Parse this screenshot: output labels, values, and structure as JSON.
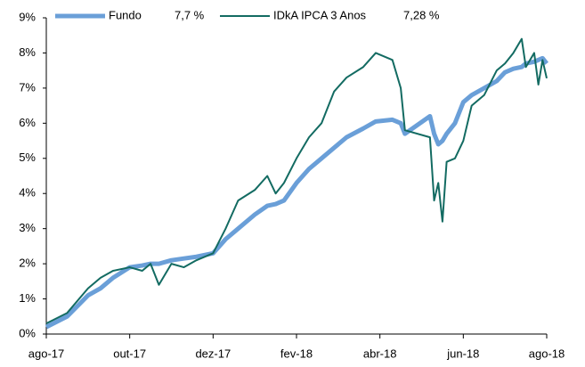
{
  "chart_data": {
    "type": "line",
    "x": [
      0,
      0.5,
      1,
      1.3,
      1.6,
      2,
      2.3,
      2.5,
      2.7,
      3,
      3.3,
      3.6,
      4,
      4.3,
      4.6,
      5,
      5.3,
      5.5,
      5.7,
      6,
      6.3,
      6.6,
      6.9,
      7.2,
      7.6,
      7.9,
      8.3,
      8.5,
      8.6,
      9.2,
      9.3,
      9.4,
      9.5,
      9.6,
      9.8,
      10,
      10.2,
      10.5,
      10.8,
      11,
      11.2,
      11.4,
      11.5,
      11.7,
      11.8,
      11.9,
      12
    ],
    "series": [
      {
        "name": "Fundo",
        "legend_value": "7,7 %",
        "color": "#6a9fd8",
        "width": 5,
        "values": [
          0.2,
          0.5,
          1.1,
          1.3,
          1.6,
          1.9,
          1.95,
          2.0,
          2.0,
          2.1,
          2.15,
          2.2,
          2.3,
          2.7,
          3.0,
          3.4,
          3.65,
          3.7,
          3.8,
          4.3,
          4.7,
          5.0,
          5.3,
          5.6,
          5.85,
          6.05,
          6.1,
          6.0,
          5.7,
          6.2,
          5.7,
          5.4,
          5.5,
          5.7,
          6.0,
          6.6,
          6.8,
          7.0,
          7.2,
          7.45,
          7.55,
          7.6,
          7.7,
          7.75,
          7.8,
          7.85,
          7.7
        ]
      },
      {
        "name": "IDkA IPCA 3 Anos",
        "legend_value": "7,28 %",
        "color": "#136b62",
        "width": 2,
        "values": [
          0.3,
          0.6,
          1.3,
          1.6,
          1.8,
          1.9,
          1.8,
          2.0,
          1.4,
          2.0,
          1.9,
          2.1,
          2.3,
          3.0,
          3.8,
          4.1,
          4.5,
          4.0,
          4.3,
          5.0,
          5.6,
          6.0,
          6.9,
          7.3,
          7.6,
          8.0,
          7.8,
          7.0,
          5.8,
          5.6,
          3.8,
          4.3,
          3.2,
          4.9,
          5.0,
          5.5,
          6.5,
          6.8,
          7.5,
          7.7,
          8.0,
          8.4,
          7.6,
          8.0,
          7.1,
          7.8,
          7.28
        ]
      }
    ],
    "xlim": [
      0,
      12
    ],
    "xticks": [
      {
        "value": 0,
        "label": "ago-17"
      },
      {
        "value": 2,
        "label": "out-17"
      },
      {
        "value": 4,
        "label": "dez-17"
      },
      {
        "value": 6,
        "label": "fev-18"
      },
      {
        "value": 8,
        "label": "abr-18"
      },
      {
        "value": 10,
        "label": "jun-18"
      },
      {
        "value": 12,
        "label": "ago-18"
      }
    ],
    "ylim": [
      0,
      9
    ],
    "yticks": [
      {
        "value": 0,
        "label": "0%"
      },
      {
        "value": 1,
        "label": "1%"
      },
      {
        "value": 2,
        "label": "2%"
      },
      {
        "value": 3,
        "label": "3%"
      },
      {
        "value": 4,
        "label": "4%"
      },
      {
        "value": 5,
        "label": "5%"
      },
      {
        "value": 6,
        "label": "6%"
      },
      {
        "value": 7,
        "label": "7%"
      },
      {
        "value": 8,
        "label": "8%"
      },
      {
        "value": 9,
        "label": "9%"
      }
    ],
    "grid": false
  }
}
